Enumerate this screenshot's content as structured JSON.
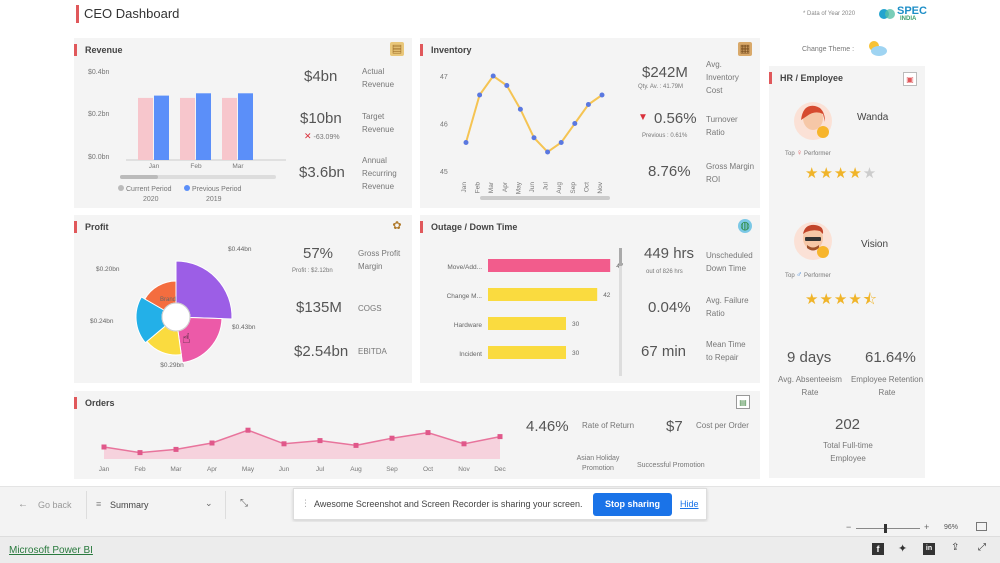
{
  "header": {
    "title": "CEO Dashboard",
    "note": "* Data of Year 2020",
    "logo": "SPEC",
    "logo_sub": "INDIA",
    "change_theme": "Change Theme :"
  },
  "revenue": {
    "title": "Revenue",
    "y_ticks": [
      "$0.4bn",
      "$0.2bn",
      "$0.0bn"
    ],
    "legend": {
      "current": "Current Period",
      "previous": "Previous Period",
      "current_year": "2020",
      "previous_year": "2019"
    },
    "kpis": [
      {
        "value": "$4bn",
        "label": "Actual Revenue"
      },
      {
        "value": "$10bn",
        "label": "Target Revenue",
        "sub": "-63.09%"
      },
      {
        "value": "$3.6bn",
        "label": "Annual Recurring Revenue"
      }
    ]
  },
  "inventory": {
    "title": "Inventory",
    "kpis": [
      {
        "value": "$242M",
        "sub": "Qty. Av. : 41.79M",
        "label": "Avg. Inventory Cost"
      },
      {
        "value": "0.56%",
        "sub": "Previous : 0.61%",
        "label": "Turnover Ratio"
      },
      {
        "value": "8.76%",
        "label": "Gross Margin ROI"
      }
    ]
  },
  "profit": {
    "title": "Profit",
    "center": "Brand",
    "kpis": [
      {
        "value": "57%",
        "sub": "Profit : $2.12bn",
        "label": "Gross Profit Margin"
      },
      {
        "value": "$135M",
        "label": "COGS"
      },
      {
        "value": "$2.54bn",
        "label": "EBITDA"
      }
    ]
  },
  "outage": {
    "title": "Outage / Down Time",
    "kpis": [
      {
        "value": "449 hrs",
        "sub": "out of 826 hrs",
        "label": "Unscheduled Down Time"
      },
      {
        "value": "0.04%",
        "label": "Avg. Failure Ratio"
      },
      {
        "value": "67 min",
        "label": "Mean Time to Repair"
      }
    ]
  },
  "orders": {
    "title": "Orders",
    "kpis": [
      {
        "value": "4.46%",
        "label": "Rate of Return"
      },
      {
        "value": "$7",
        "label": "Cost per Order"
      }
    ],
    "bottom_labels": [
      "Asian Holiday Promotion",
      "Successful Promotion"
    ]
  },
  "hr": {
    "title": "HR / Employee",
    "employees": [
      {
        "name": "Wanda",
        "top": "Top",
        "performer": "Performer",
        "rating": 4.0
      },
      {
        "name": "Vision",
        "top": "Top",
        "performer": "Performer",
        "rating": 4.5
      }
    ],
    "stats": [
      {
        "value": "9 days",
        "label": "Avg. Absenteeism Rate"
      },
      {
        "value": "61.64%",
        "label": "Employee Retention Rate"
      },
      {
        "value": "202",
        "label": "Total Full-time Employee"
      }
    ]
  },
  "bottombar": {
    "go_back": "Go back",
    "page": "Summary",
    "share_msg": "Awesome Screenshot and Screen Recorder is sharing your screen.",
    "stop": "Stop sharing",
    "hide": "Hide",
    "zoom": "96%"
  },
  "footer": {
    "brand": "Microsoft Power BI"
  },
  "chart_data": [
    {
      "type": "bar",
      "title": "Revenue",
      "categories": [
        "Jan",
        "Feb",
        "Mar"
      ],
      "series": [
        {
          "name": "Current Period",
          "color": "#f7c6cc",
          "values": [
            0.27,
            0.27,
            0.27
          ]
        },
        {
          "name": "Previous Period",
          "color": "#5b8ff9",
          "values": [
            0.28,
            0.29,
            0.29
          ]
        }
      ],
      "ylim": [
        0,
        0.4
      ]
    },
    {
      "type": "line",
      "title": "Inventory",
      "categories": [
        "Jan",
        "Feb",
        "Mar",
        "Apr",
        "May",
        "Jun",
        "Jul",
        "Aug",
        "Sep",
        "Oct",
        "Nov"
      ],
      "values": [
        45.6,
        46.6,
        47.0,
        46.8,
        46.3,
        45.7,
        45.4,
        45.6,
        46.0,
        46.4,
        46.6
      ],
      "ylim": [
        45,
        47
      ],
      "y_ticks": [
        "47",
        "46",
        "45"
      ],
      "color": "#f5c453"
    },
    {
      "type": "pie",
      "title": "Profit",
      "slices": [
        {
          "label": "$0.44bn",
          "value": 0.44,
          "color": "#9c5ee6"
        },
        {
          "label": "$0.43bn",
          "value": 0.43,
          "color": "#ec5aa8"
        },
        {
          "label": "$0.29bn",
          "value": 0.29,
          "color": "#fadb3f"
        },
        {
          "label": "$0.24bn",
          "value": 0.24,
          "color": "#23b0e8"
        },
        {
          "label": "$0.20bn",
          "value": 0.2,
          "color": "#f46d3f"
        }
      ]
    },
    {
      "type": "bar",
      "title": "Outage / Down Time",
      "categories": [
        "Move/Add...",
        "Change M...",
        "Hardware",
        "Incident"
      ],
      "values": [
        47,
        42,
        30,
        30
      ],
      "colors": [
        "#f25c8c",
        "#fadb3f",
        "#fadb3f",
        "#fadb3f"
      ],
      "xlim": [
        0,
        50
      ]
    },
    {
      "type": "area",
      "title": "Orders",
      "categories": [
        "Jan",
        "Feb",
        "Mar",
        "Apr",
        "May",
        "Jun",
        "Jul",
        "Aug",
        "Sep",
        "Oct",
        "Nov",
        "Dec"
      ],
      "values": [
        1.5,
        0.8,
        1.2,
        2.0,
        3.6,
        1.9,
        2.3,
        1.7,
        2.6,
        3.3,
        1.9,
        2.8
      ],
      "ylim": [
        0,
        6
      ],
      "color": "#e8749c"
    }
  ]
}
